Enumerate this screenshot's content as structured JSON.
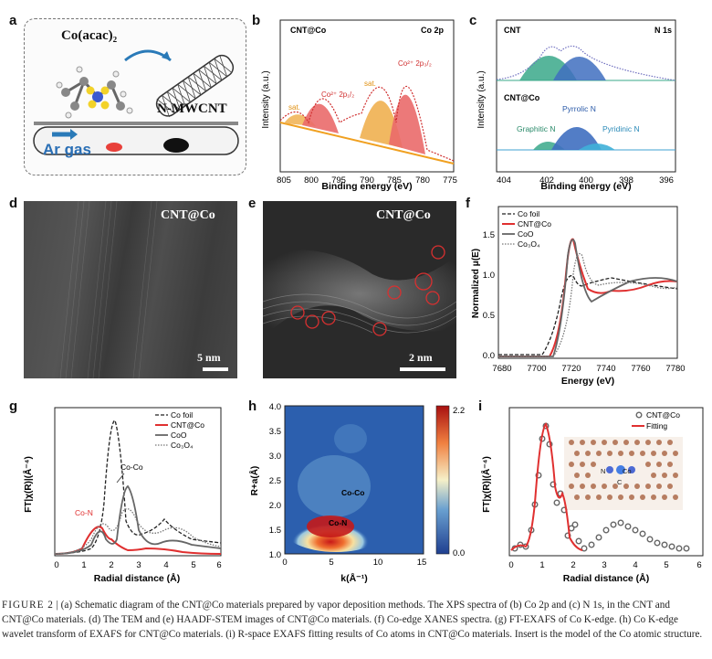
{
  "labels": {
    "a": "a",
    "b": "b",
    "c": "c",
    "d": "d",
    "e": "e",
    "f": "f",
    "g": "g",
    "h": "h",
    "i": "i"
  },
  "panel_a": {
    "precursor": "Co(acac)₂",
    "nanotube": "N-MWCNT",
    "gas": "Ar gas"
  },
  "panel_b": {
    "sample": "CNT@Co",
    "region": "Co 2p",
    "peak1": "Co²⁺ 2p₃/₂",
    "peak2": "Co²⁺ 2p₁/₂",
    "sat1": "sat.",
    "sat2": "sat.",
    "xlabel": "Binding energy (eV)",
    "ylabel": "Intensity (a.u.)",
    "xticks": [
      "805",
      "800",
      "795",
      "790",
      "785",
      "780",
      "775"
    ]
  },
  "panel_c": {
    "sample1": "CNT",
    "region": "N 1s",
    "sample2": "CNT@Co",
    "pyrrolic": "Pyrrolic N",
    "graphitic": "Graphitic N",
    "pyridinic": "Pyridinic N",
    "xlabel": "Binding energy (eV)",
    "ylabel": "Intensity (a.u.)",
    "xticks": [
      "404",
      "402",
      "400",
      "398",
      "396"
    ]
  },
  "panel_d": {
    "label": "CNT@Co",
    "scale": "5 nm"
  },
  "panel_e": {
    "label": "CNT@Co",
    "scale": "2 nm"
  },
  "panel_f": {
    "ylabel": "Normalized μ(E)",
    "xlabel": "Energy (eV)",
    "legend": [
      "Co foil",
      "CNT@Co",
      "CoO",
      "Co₃O₄"
    ],
    "xticks": [
      "7680",
      "7700",
      "7720",
      "7740",
      "7760",
      "7780"
    ],
    "yticks": [
      "0.0",
      "0.5",
      "1.0",
      "1.5"
    ]
  },
  "panel_g": {
    "ylabel": "FT|χ(R)|(Å⁻⁴)",
    "xlabel": "Radial distance (Å)",
    "legend": [
      "Co foil",
      "CNT@Co",
      "CoO",
      "Co₃O₄"
    ],
    "ann1": "Co-Co",
    "ann2": "Co-N",
    "xticks": [
      "0",
      "1",
      "2",
      "3",
      "4",
      "5",
      "6"
    ]
  },
  "panel_h": {
    "ylabel": "R+a(Å)",
    "xlabel": "k(Å⁻¹)",
    "ann1": "Co-Co",
    "ann2": "Co-N",
    "xticks": [
      "0",
      "5",
      "10",
      "15"
    ],
    "yticks": [
      "1.0",
      "1.5",
      "2.0",
      "2.5",
      "3.0",
      "3.5",
      "4.0"
    ],
    "cmax": "2.2",
    "cmin": "0.0"
  },
  "panel_i": {
    "ylabel": "FT|χ(R)|(Å⁻⁴)",
    "xlabel": "Radial distance (Å)",
    "legend": [
      "CNT@Co",
      "Fitting"
    ],
    "xticks": [
      "0",
      "1",
      "2",
      "3",
      "4",
      "5",
      "6"
    ],
    "n_label": "N",
    "co_label": "Co",
    "c_label": "C"
  },
  "caption": {
    "figure": "FIGURE 2",
    "text": "| (a) Schematic diagram of the CNT@Co materials prepared by vapor deposition methods. The XPS spectra of (b) Co 2p and (c) N 1s, in the CNT and CNT@Co materials. (d) The TEM and (e) HAADF-STEM images of CNT@Co materials. (f) Co-edge XANES spectra. (g) FT-EXAFS of Co K-edge. (h) Co K-edge wavelet transform of EXAFS for CNT@Co materials. (i) R-space EXAFS fitting results of Co atoms in CNT@Co materials. Insert is the model of the Co atomic structure."
  },
  "colors": {
    "red": "#e03030",
    "orange": "#f0a020",
    "teal": "#3aa88a",
    "blue": "#3f6fc0"
  }
}
